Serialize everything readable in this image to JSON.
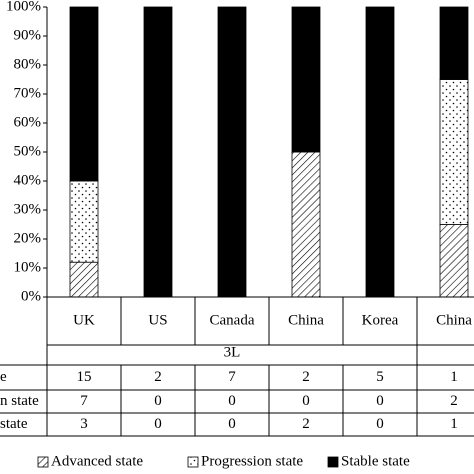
{
  "chart_data": {
    "type": "stacked_bar",
    "categories": [
      "UK",
      "US",
      "Canada",
      "China",
      "Korea",
      "China"
    ],
    "group_label": "3L",
    "series": [
      {
        "name": "Advanced state",
        "color": "#000000",
        "pattern": "hatch",
        "values": [
          12,
          0,
          0,
          50,
          0,
          25
        ]
      },
      {
        "name": "Progression state",
        "color": "#000000",
        "pattern": "dots",
        "values": [
          28,
          0,
          0,
          0,
          0,
          50
        ]
      },
      {
        "name": "Stable state",
        "color": "#000000",
        "pattern": "solid",
        "values": [
          60,
          100,
          100,
          50,
          100,
          25
        ]
      }
    ],
    "ylim": [
      0,
      100
    ],
    "yticks": [
      {
        "value": 0,
        "label": "0%"
      },
      {
        "value": 10,
        "label": "10%"
      },
      {
        "value": 20,
        "label": "20%"
      },
      {
        "value": 30,
        "label": "30%"
      },
      {
        "value": 40,
        "label": "40%"
      },
      {
        "value": 50,
        "label": "50%"
      },
      {
        "value": 60,
        "label": "60%"
      },
      {
        "value": 70,
        "label": "70%"
      },
      {
        "value": 80,
        "label": "80%"
      },
      {
        "value": 90,
        "label": "90%"
      },
      {
        "value": 100,
        "label": "100%"
      }
    ],
    "legend": "bottom",
    "table": {
      "row_labels": [
        "e",
        "n state",
        "state"
      ],
      "rows": [
        [
          15,
          2,
          7,
          2,
          5,
          1
        ],
        [
          7,
          0,
          0,
          0,
          0,
          2
        ],
        [
          3,
          0,
          0,
          2,
          0,
          1
        ]
      ]
    }
  }
}
